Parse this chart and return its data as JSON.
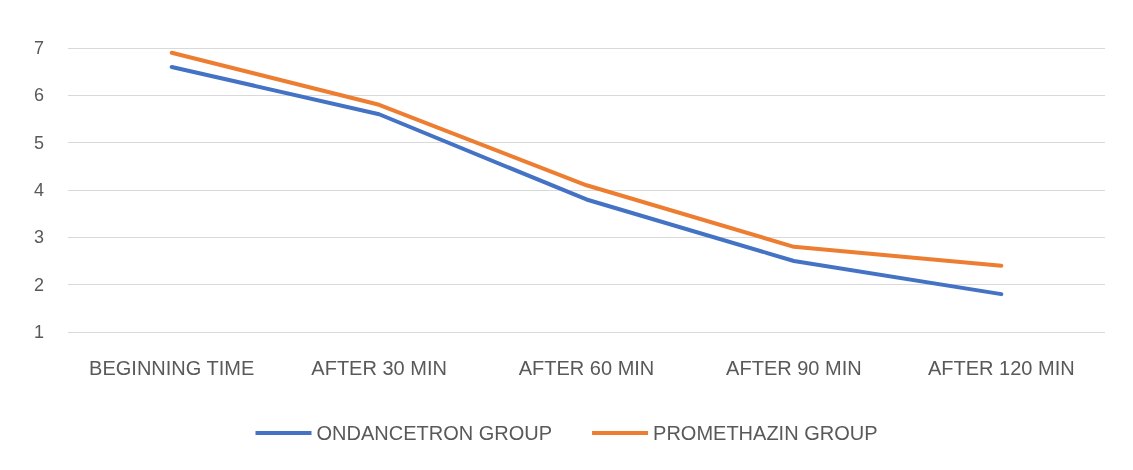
{
  "chart_data": {
    "type": "line",
    "categories": [
      "BEGINNING TIME",
      "AFTER 30 MIN",
      "AFTER 60 MIN",
      "AFTER 90 MIN",
      "AFTER 120 MIN"
    ],
    "series": [
      {
        "name": "ONDANCETRON GROUP",
        "color": "#4472c4",
        "values": [
          6.6,
          5.6,
          3.8,
          2.5,
          1.8
        ]
      },
      {
        "name": "PROMETHAZIN GROUP",
        "color": "#ed7d31",
        "values": [
          6.9,
          5.8,
          4.1,
          2.8,
          2.4
        ]
      }
    ],
    "ylim": [
      1,
      7
    ],
    "yticks": [
      1,
      2,
      3,
      4,
      5,
      6,
      7
    ],
    "grid": "y",
    "legend": "bottom",
    "marker": "none",
    "line_style": "solid"
  }
}
